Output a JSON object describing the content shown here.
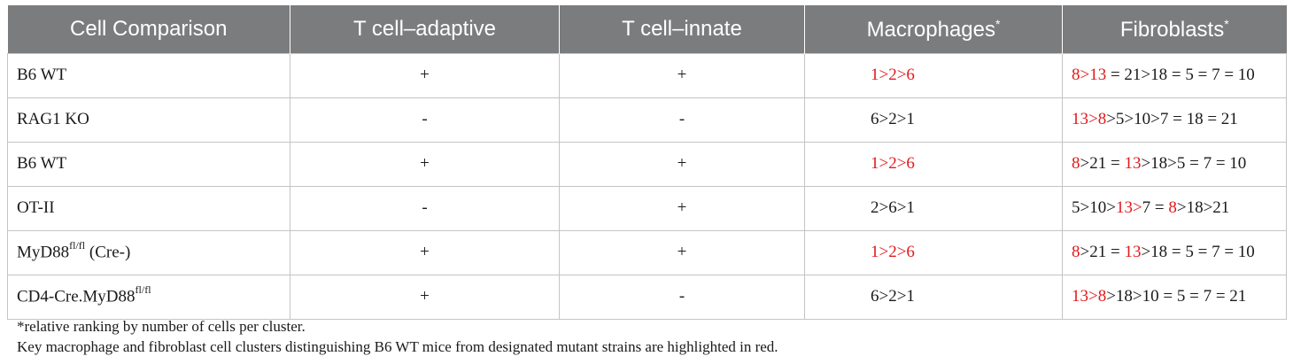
{
  "headers": [
    "Cell Comparison",
    "T cell–adaptive",
    "T cell–innate",
    "Macrophages",
    "Fibroblasts"
  ],
  "header_marks": {
    "macrophages": "*",
    "fibroblasts": "*"
  },
  "rows": [
    {
      "cell": "B6 WT",
      "cell_sup": "",
      "cell_suffix": "",
      "adaptive": "+",
      "innate": "+",
      "macrophages": [
        {
          "t": "1>2>6",
          "red": true
        }
      ],
      "fibroblasts": [
        {
          "t": "8>13",
          "red": true
        },
        {
          "t": " = 21>18 = 5 = 7 = 10",
          "red": false
        }
      ]
    },
    {
      "cell": "RAG1 KO",
      "cell_sup": "",
      "cell_suffix": "",
      "adaptive": "-",
      "innate": "-",
      "macrophages": [
        {
          "t": "6>2>1",
          "red": false
        }
      ],
      "fibroblasts": [
        {
          "t": "13>8",
          "red": true
        },
        {
          "t": ">5>10>7 = 18 = 21",
          "red": false
        }
      ]
    },
    {
      "cell": "B6 WT",
      "cell_sup": "",
      "cell_suffix": "",
      "adaptive": "+",
      "innate": "+",
      "macrophages": [
        {
          "t": "1>2>6",
          "red": true
        }
      ],
      "fibroblasts": [
        {
          "t": "8",
          "red": true
        },
        {
          "t": ">21 = ",
          "red": false
        },
        {
          "t": "13",
          "red": true
        },
        {
          "t": ">18>5 = 7 = 10",
          "red": false
        }
      ]
    },
    {
      "cell": "OT-II",
      "cell_sup": "",
      "cell_suffix": "",
      "adaptive": "-",
      "innate": "+",
      "macrophages": [
        {
          "t": "2>6>1",
          "red": false
        }
      ],
      "fibroblasts": [
        {
          "t": "5>10>",
          "red": false
        },
        {
          "t": "13>",
          "red": true
        },
        {
          "t": "7 = ",
          "red": false
        },
        {
          "t": "8",
          "red": true
        },
        {
          "t": ">18>21",
          "red": false
        }
      ]
    },
    {
      "cell": "MyD88",
      "cell_sup": "fl/fl",
      "cell_suffix": " (Cre-)",
      "adaptive": "+",
      "innate": "+",
      "macrophages": [
        {
          "t": "1>2>6",
          "red": true
        }
      ],
      "fibroblasts": [
        {
          "t": "8",
          "red": true
        },
        {
          "t": ">21 = ",
          "red": false
        },
        {
          "t": "13",
          "red": true
        },
        {
          "t": ">18 = 5 = 7 = 10",
          "red": false
        }
      ]
    },
    {
      "cell": "CD4-Cre.MyD88",
      "cell_sup": "fl/fl",
      "cell_suffix": "",
      "adaptive": "+",
      "innate": "-",
      "macrophages": [
        {
          "t": "6>2>1",
          "red": false
        }
      ],
      "fibroblasts": [
        {
          "t": "13>8",
          "red": true
        },
        {
          "t": ">18>10 = 5 = 7 = 21",
          "red": false
        }
      ]
    }
  ],
  "footnotes": [
    "*relative ranking by number of cells per cluster.",
    "Key macrophage and fibroblast cell clusters distinguishing B6 WT mice from designated mutant strains are highlighted in red."
  ],
  "colors": {
    "header_bg": "#7b7c7e",
    "highlight": "#e3191c",
    "border": "#c4c4c4"
  }
}
